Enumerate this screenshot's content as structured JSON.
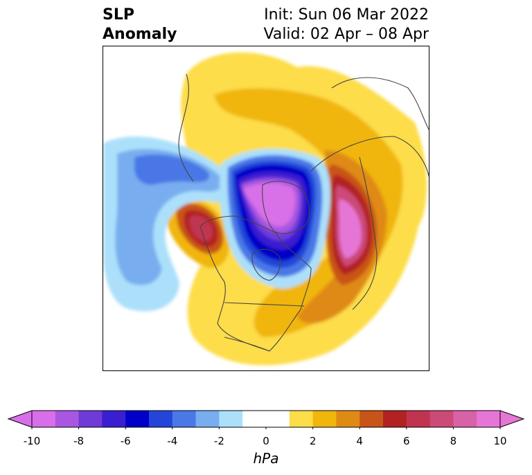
{
  "title": {
    "left_line1": "SLP",
    "left_line2": "Anomaly",
    "init": "Init: Sun 06 Mar 2022",
    "valid": "Valid: 02 Apr – 08 Apr"
  },
  "colorbar": {
    "unit": "hPa",
    "tick_labels": [
      "-10",
      "-8",
      "-6",
      "-4",
      "-2",
      "0",
      "2",
      "4",
      "6",
      "8",
      "10"
    ],
    "levels": [
      -10,
      -9,
      -8,
      -7,
      -6,
      -5,
      -4,
      -3,
      -2,
      -1,
      1,
      2,
      3,
      4,
      5,
      6,
      7,
      8,
      9,
      10
    ],
    "colors": [
      "#d86fe8",
      "#a957e0",
      "#6e3ad8",
      "#3a1fd0",
      "#0000c8",
      "#2446d8",
      "#4a78e6",
      "#78aef0",
      "#ace0fa",
      "#ffffff",
      "#fddd48",
      "#f0b60c",
      "#df8a14",
      "#c85418",
      "#b22222",
      "#c03450",
      "#cc4a78",
      "#d862a8",
      "#e676d6"
    ],
    "extend": "both"
  },
  "map": {
    "projection": "north-polar-stereographic",
    "features": [
      "coastlines",
      "country-borders",
      "state-borders"
    ]
  }
}
